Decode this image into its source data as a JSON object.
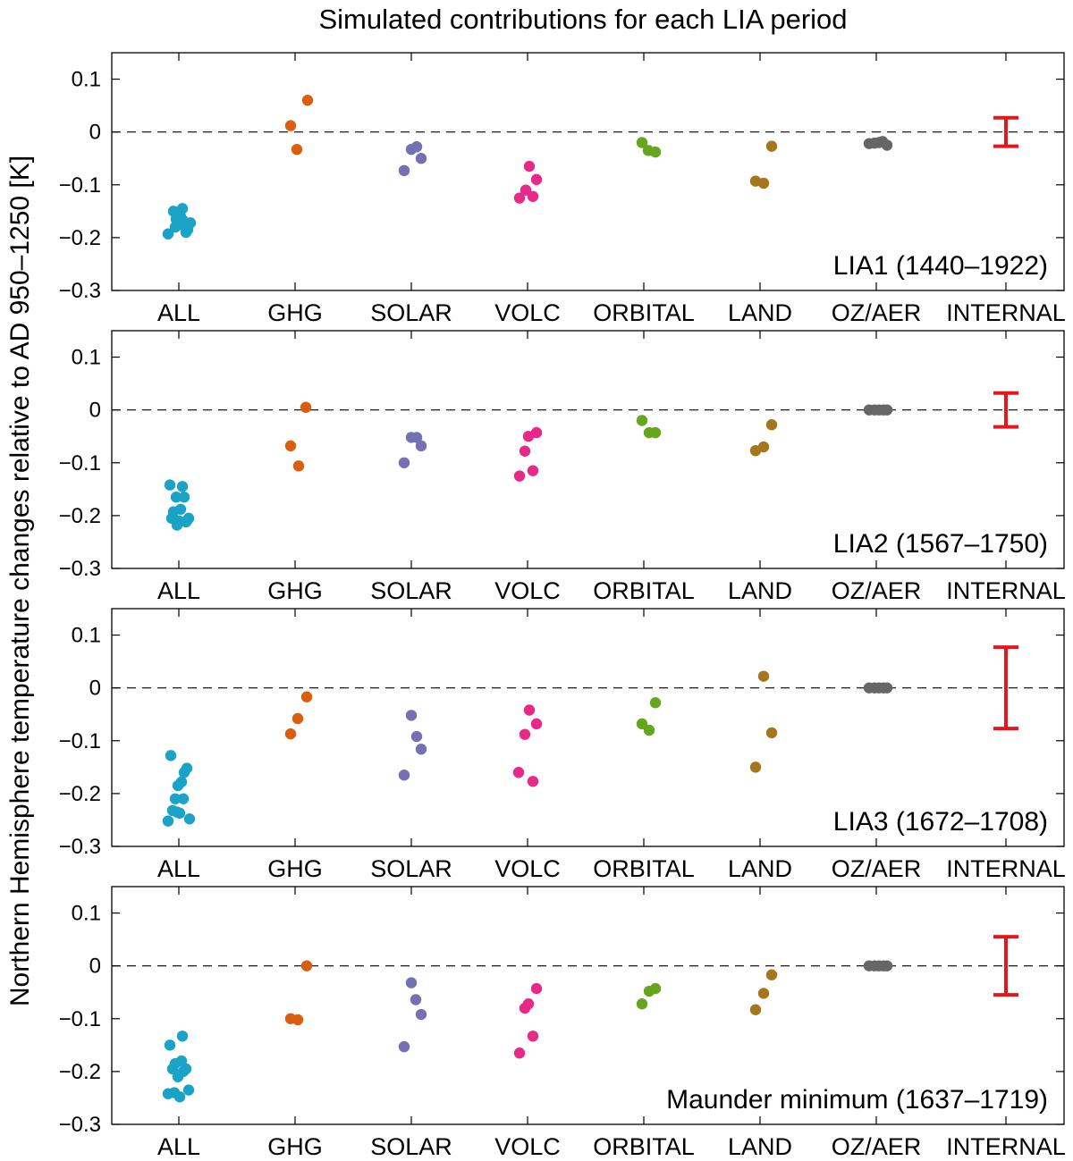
{
  "chart_data": {
    "type": "scatter",
    "title": "Simulated contributions for each LIA period",
    "ylabel": "Northern Hemisphere temperature changes relative to AD 950–1250  [K]",
    "ylim": [
      -0.3,
      0.15
    ],
    "yticks": [
      0.1,
      0,
      -0.1,
      -0.2,
      -0.3
    ],
    "ytick_labels": [
      "0.1",
      "0",
      "−0.1",
      "−0.2",
      "−0.3"
    ],
    "categories": [
      "ALL",
      "GHG",
      "SOLAR",
      "VOLC",
      "ORBITAL",
      "LAND",
      "OZ/AER",
      "INTERNAL"
    ],
    "colors": {
      "ALL": "#1aa3c6",
      "GHG": "#d95f0e",
      "SOLAR": "#7570b3",
      "VOLC": "#e7298a",
      "ORBITAL": "#66a61e",
      "LAND": "#a6761d",
      "OZ/AER": "#666666",
      "INTERNAL": "#e8151b"
    },
    "zero_line": "dashed",
    "panels": [
      {
        "label": "LIA1 (1440–1922)",
        "series": [
          {
            "name": "ALL",
            "points": [
              [
                -0.12,
                -0.193
              ],
              [
                -0.06,
                -0.15
              ],
              [
                -0.03,
                -0.165
              ],
              [
                0.0,
                -0.175
              ],
              [
                0.02,
                -0.16
              ],
              [
                0.04,
                -0.145
              ],
              [
                0.06,
                -0.178
              ],
              [
                0.08,
                -0.19
              ],
              [
                0.1,
                -0.185
              ],
              [
                0.13,
                -0.172
              ],
              [
                -0.04,
                -0.18
              ],
              [
                0.05,
                -0.168
              ]
            ]
          },
          {
            "name": "GHG",
            "points": [
              [
                -0.05,
                0.012
              ],
              [
                0.02,
                -0.033
              ],
              [
                0.14,
                0.06
              ]
            ]
          },
          {
            "name": "SOLAR",
            "points": [
              [
                -0.08,
                -0.073
              ],
              [
                0.0,
                -0.033
              ],
              [
                0.06,
                -0.028
              ],
              [
                0.11,
                -0.05
              ]
            ]
          },
          {
            "name": "VOLC",
            "points": [
              [
                -0.09,
                -0.125
              ],
              [
                -0.02,
                -0.11
              ],
              [
                0.02,
                -0.065
              ],
              [
                0.06,
                -0.122
              ],
              [
                0.1,
                -0.09
              ]
            ]
          },
          {
            "name": "ORBITAL",
            "points": [
              [
                -0.02,
                -0.02
              ],
              [
                0.05,
                -0.035
              ],
              [
                0.13,
                -0.038
              ]
            ]
          },
          {
            "name": "LAND",
            "points": [
              [
                -0.05,
                -0.093
              ],
              [
                0.04,
                -0.097
              ],
              [
                0.13,
                -0.027
              ]
            ]
          },
          {
            "name": "OZ/AER",
            "points": [
              [
                -0.08,
                -0.022
              ],
              [
                -0.02,
                -0.021
              ],
              [
                0.03,
                -0.02
              ],
              [
                0.07,
                -0.018
              ],
              [
                0.12,
                -0.025
              ]
            ]
          }
        ],
        "internal": {
          "low": -0.027,
          "high": 0.027
        }
      },
      {
        "label": "LIA2 (1567–1750)",
        "series": [
          {
            "name": "ALL",
            "points": [
              [
                -0.1,
                -0.142
              ],
              [
                -0.08,
                -0.205
              ],
              [
                -0.06,
                -0.193
              ],
              [
                -0.03,
                -0.165
              ],
              [
                0.0,
                -0.21
              ],
              [
                0.02,
                -0.188
              ],
              [
                0.04,
                -0.145
              ],
              [
                0.06,
                -0.165
              ],
              [
                0.08,
                -0.212
              ],
              [
                0.11,
                -0.205
              ],
              [
                -0.02,
                -0.218
              ],
              [
                0.09,
                -0.21
              ]
            ]
          },
          {
            "name": "GHG",
            "points": [
              [
                -0.05,
                -0.068
              ],
              [
                0.04,
                -0.106
              ],
              [
                0.12,
                0.005
              ]
            ]
          },
          {
            "name": "SOLAR",
            "points": [
              [
                -0.08,
                -0.1
              ],
              [
                0.0,
                -0.052
              ],
              [
                0.06,
                -0.052
              ],
              [
                0.11,
                -0.068
              ]
            ]
          },
          {
            "name": "VOLC",
            "points": [
              [
                -0.09,
                -0.125
              ],
              [
                -0.03,
                -0.078
              ],
              [
                0.01,
                -0.05
              ],
              [
                0.06,
                -0.115
              ],
              [
                0.1,
                -0.043
              ]
            ]
          },
          {
            "name": "ORBITAL",
            "points": [
              [
                -0.02,
                -0.02
              ],
              [
                0.06,
                -0.043
              ],
              [
                0.13,
                -0.043
              ]
            ]
          },
          {
            "name": "LAND",
            "points": [
              [
                -0.05,
                -0.077
              ],
              [
                0.04,
                -0.07
              ],
              [
                0.13,
                -0.028
              ]
            ]
          },
          {
            "name": "OZ/AER",
            "points": [
              [
                -0.08,
                0.0
              ],
              [
                -0.02,
                0.0
              ],
              [
                0.03,
                0.0
              ],
              [
                0.08,
                0.0
              ],
              [
                0.12,
                0.0
              ]
            ]
          }
        ],
        "internal": {
          "low": -0.032,
          "high": 0.032
        }
      },
      {
        "label": "LIA3 (1672–1708)",
        "series": [
          {
            "name": "ALL",
            "points": [
              [
                -0.12,
                -0.252
              ],
              [
                -0.09,
                -0.128
              ],
              [
                -0.07,
                -0.232
              ],
              [
                -0.04,
                -0.21
              ],
              [
                -0.01,
                -0.185
              ],
              [
                0.01,
                -0.237
              ],
              [
                0.03,
                -0.178
              ],
              [
                0.05,
                -0.21
              ],
              [
                0.06,
                -0.16
              ],
              [
                0.09,
                -0.152
              ],
              [
                0.12,
                -0.248
              ],
              [
                -0.02,
                -0.235
              ]
            ]
          },
          {
            "name": "GHG",
            "points": [
              [
                -0.05,
                -0.087
              ],
              [
                0.03,
                -0.058
              ],
              [
                0.13,
                -0.017
              ]
            ]
          },
          {
            "name": "SOLAR",
            "points": [
              [
                -0.08,
                -0.165
              ],
              [
                0.0,
                -0.052
              ],
              [
                0.06,
                -0.092
              ],
              [
                0.11,
                -0.116
              ]
            ]
          },
          {
            "name": "VOLC",
            "points": [
              [
                -0.1,
                -0.16
              ],
              [
                -0.03,
                -0.088
              ],
              [
                0.02,
                -0.042
              ],
              [
                0.06,
                -0.177
              ],
              [
                0.1,
                -0.068
              ]
            ]
          },
          {
            "name": "ORBITAL",
            "points": [
              [
                -0.02,
                -0.068
              ],
              [
                0.06,
                -0.08
              ],
              [
                0.13,
                -0.028
              ]
            ]
          },
          {
            "name": "LAND",
            "points": [
              [
                -0.05,
                -0.15
              ],
              [
                0.04,
                0.022
              ],
              [
                0.13,
                -0.085
              ]
            ]
          },
          {
            "name": "OZ/AER",
            "points": [
              [
                -0.08,
                0.0
              ],
              [
                -0.02,
                0.0
              ],
              [
                0.03,
                0.0
              ],
              [
                0.08,
                0.0
              ],
              [
                0.12,
                0.0
              ]
            ]
          }
        ],
        "internal": {
          "low": -0.077,
          "high": 0.077
        }
      },
      {
        "label": "Maunder minimum (1637–1719)",
        "series": [
          {
            "name": "ALL",
            "points": [
              [
                -0.12,
                -0.242
              ],
              [
                -0.1,
                -0.15
              ],
              [
                -0.07,
                -0.195
              ],
              [
                -0.04,
                -0.185
              ],
              [
                -0.01,
                -0.21
              ],
              [
                0.01,
                -0.248
              ],
              [
                0.03,
                -0.18
              ],
              [
                0.04,
                -0.133
              ],
              [
                0.05,
                -0.2
              ],
              [
                0.08,
                -0.195
              ],
              [
                0.11,
                -0.235
              ],
              [
                -0.05,
                -0.24
              ]
            ]
          },
          {
            "name": "GHG",
            "points": [
              [
                -0.05,
                -0.1
              ],
              [
                0.03,
                -0.102
              ],
              [
                0.13,
                0.0
              ]
            ]
          },
          {
            "name": "SOLAR",
            "points": [
              [
                -0.08,
                -0.153
              ],
              [
                0.0,
                -0.032
              ],
              [
                0.05,
                -0.064
              ],
              [
                0.11,
                -0.092
              ]
            ]
          },
          {
            "name": "VOLC",
            "points": [
              [
                -0.09,
                -0.165
              ],
              [
                -0.03,
                -0.08
              ],
              [
                0.01,
                -0.072
              ],
              [
                0.06,
                -0.133
              ],
              [
                0.1,
                -0.043
              ]
            ]
          },
          {
            "name": "ORBITAL",
            "points": [
              [
                -0.02,
                -0.072
              ],
              [
                0.06,
                -0.048
              ],
              [
                0.13,
                -0.043
              ]
            ]
          },
          {
            "name": "LAND",
            "points": [
              [
                -0.05,
                -0.083
              ],
              [
                0.04,
                -0.052
              ],
              [
                0.13,
                -0.017
              ]
            ]
          },
          {
            "name": "OZ/AER",
            "points": [
              [
                -0.08,
                0.0
              ],
              [
                -0.02,
                0.0
              ],
              [
                0.03,
                0.0
              ],
              [
                0.08,
                0.0
              ],
              [
                0.12,
                0.0
              ]
            ]
          }
        ],
        "internal": {
          "low": -0.055,
          "high": 0.055
        }
      }
    ]
  }
}
